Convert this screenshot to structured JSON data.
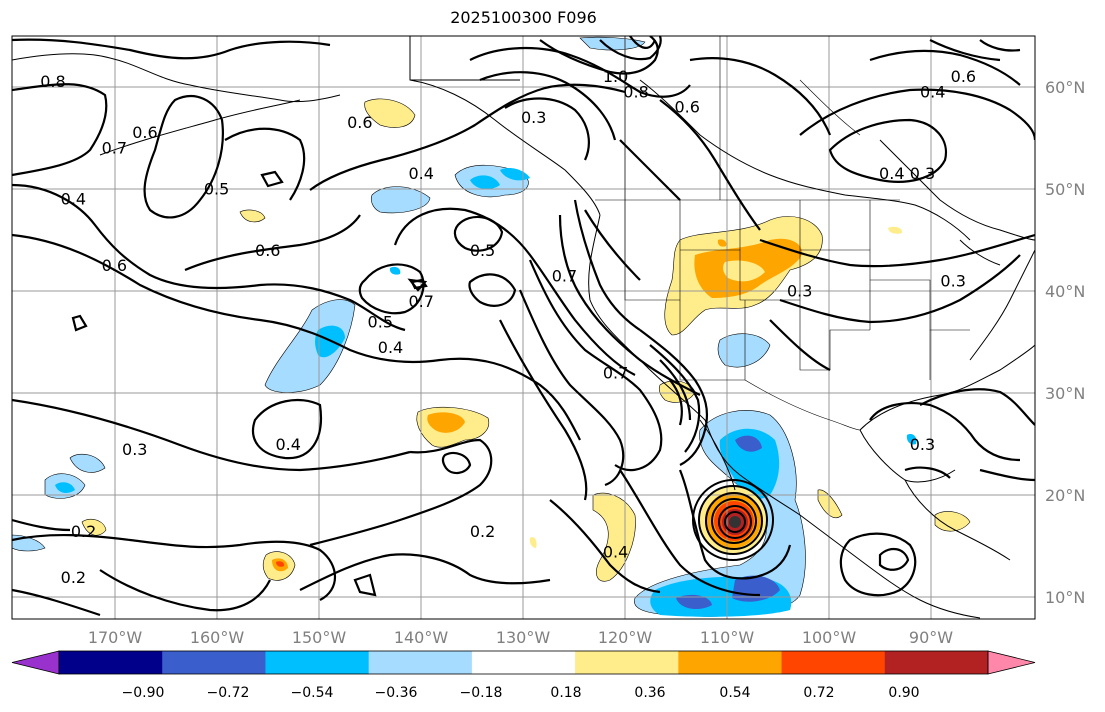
{
  "title": "2025100300 F096",
  "map": {
    "lon_ticks": [
      "170°W",
      "160°W",
      "150°W",
      "140°W",
      "130°W",
      "120°W",
      "110°W",
      "100°W",
      "90°W"
    ],
    "lat_ticks": [
      "60°N",
      "50°N",
      "40°N",
      "30°N",
      "20°N",
      "10°N"
    ],
    "lon_range": [
      -180,
      -80
    ],
    "lat_range": [
      8,
      65
    ]
  },
  "contour_labels": [
    {
      "text": "0.8",
      "lon": -176,
      "lat": 60.5
    },
    {
      "text": "0.7",
      "lon": -170,
      "lat": 54
    },
    {
      "text": "0.6",
      "lon": -167,
      "lat": 55.5
    },
    {
      "text": "0.4",
      "lon": -174,
      "lat": 49
    },
    {
      "text": "0.5",
      "lon": -160,
      "lat": 50
    },
    {
      "text": "0.6",
      "lon": -170,
      "lat": 42.5
    },
    {
      "text": "0.6",
      "lon": -155,
      "lat": 44
    },
    {
      "text": "0.6",
      "lon": -146,
      "lat": 56.5
    },
    {
      "text": "0.4",
      "lon": -140,
      "lat": 51.5
    },
    {
      "text": "0.5",
      "lon": -134,
      "lat": 44
    },
    {
      "text": "0.7",
      "lon": -140,
      "lat": 39
    },
    {
      "text": "0.7",
      "lon": -126,
      "lat": 41.5
    },
    {
      "text": "0.5",
      "lon": -144,
      "lat": 37
    },
    {
      "text": "0.4",
      "lon": -143,
      "lat": 34.5
    },
    {
      "text": "0.3",
      "lon": -129,
      "lat": 57
    },
    {
      "text": "1.0",
      "lon": -121,
      "lat": 61
    },
    {
      "text": "0.8",
      "lon": -119,
      "lat": 59.5
    },
    {
      "text": "0.6",
      "lon": -114,
      "lat": 58
    },
    {
      "text": "0.4",
      "lon": -90,
      "lat": 59.5
    },
    {
      "text": "0.6",
      "lon": -87,
      "lat": 61
    },
    {
      "text": "0.4",
      "lon": -94,
      "lat": 51.5
    },
    {
      "text": "0.3",
      "lon": -91,
      "lat": 51.5
    },
    {
      "text": "0.3",
      "lon": -103,
      "lat": 40
    },
    {
      "text": "0.3",
      "lon": -88,
      "lat": 41
    },
    {
      "text": "0.7",
      "lon": -121,
      "lat": 32
    },
    {
      "text": "0.3",
      "lon": -168,
      "lat": 24.5
    },
    {
      "text": "0.4",
      "lon": -153,
      "lat": 25
    },
    {
      "text": "0.2",
      "lon": -173,
      "lat": 16.5
    },
    {
      "text": "0.2",
      "lon": -174,
      "lat": 12
    },
    {
      "text": "0.2",
      "lon": -134,
      "lat": 16.5
    },
    {
      "text": "0.4",
      "lon": -121,
      "lat": 14.5
    },
    {
      "text": "0.3",
      "lon": -91,
      "lat": 25
    }
  ],
  "colorbar": {
    "ticks": [
      "−0.90",
      "−0.72",
      "−0.54",
      "−0.36",
      "−0.18",
      "0.18",
      "0.36",
      "0.54",
      "0.72",
      "0.90"
    ],
    "colors": [
      "#9932cc",
      "#00008b",
      "#3a5fcd",
      "#00bfff",
      "#a6dcff",
      "#ffffff",
      "#ffec8b",
      "#ffa500",
      "#ff4500",
      "#b22222",
      "#ff88aa"
    ]
  }
}
